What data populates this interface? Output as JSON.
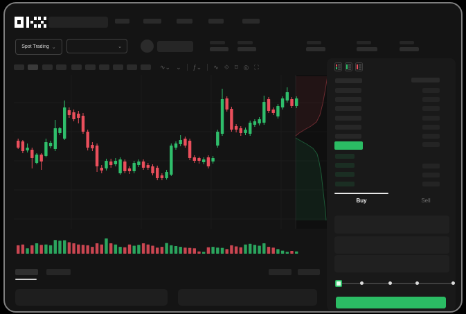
{
  "brand": {
    "name": "OKX"
  },
  "subnav": {
    "market_type": "Spot Trading",
    "chevron": "⌄"
  },
  "chart_toolbar": {
    "icons": [
      {
        "name": "candle-style-icon",
        "glyph": "∿⌄"
      },
      {
        "name": "interval-chevron-icon",
        "glyph": "⌄"
      },
      {
        "name": "indicators-icon",
        "glyph": "ƒ⌄"
      },
      {
        "name": "line-tools-icon",
        "glyph": "∿"
      },
      {
        "name": "objects-icon",
        "glyph": "⟐"
      },
      {
        "name": "snapshot-icon",
        "glyph": "⌑"
      },
      {
        "name": "settings-icon",
        "glyph": "◎"
      },
      {
        "name": "fullscreen-icon",
        "glyph": "⛶"
      }
    ]
  },
  "order_book": {
    "mode_icons": [
      "orderbook-combined-icon",
      "orderbook-bids-icon",
      "orderbook-asks-icon"
    ],
    "ask_row_count": 6,
    "bid_row_count": 4,
    "last_price_highlight_color": "#2BBC64"
  },
  "trade_panel": {
    "buy_tab": "Buy",
    "sell_tab": "Sell",
    "field_count": 3,
    "slider": {
      "tick_count": 5,
      "value_percent": 0
    },
    "buy_button_color": "#2BBC64"
  },
  "colors": {
    "up": "#2FBE6B",
    "down": "#EA4F5C",
    "background": "#141414",
    "panel": "#191919"
  },
  "chart_data": {
    "type": "candlestick",
    "axes_visible": false,
    "units": "relative price units (no axis labels are visible in the screenshot); volume 0-100",
    "ohlcv": [
      [
        127,
        130,
        115,
        117,
        55
      ],
      [
        126,
        128,
        109,
        112,
        60
      ],
      [
        113,
        123,
        110,
        117,
        35
      ],
      [
        114,
        117,
        87,
        102,
        55
      ],
      [
        95,
        109,
        93,
        107,
        68
      ],
      [
        107,
        109,
        85,
        97,
        58
      ],
      [
        105,
        130,
        103,
        125,
        60
      ],
      [
        119,
        127,
        116,
        124,
        55
      ],
      [
        115,
        157,
        112,
        145,
        90
      ],
      [
        138,
        147,
        135,
        145,
        85
      ],
      [
        130,
        185,
        128,
        175,
        88
      ],
      [
        171,
        175,
        160,
        164,
        75
      ],
      [
        168,
        172,
        155,
        158,
        68
      ],
      [
        166,
        170,
        152,
        160,
        60
      ],
      [
        163,
        167,
        137,
        140,
        58
      ],
      [
        140,
        143,
        113,
        117,
        55
      ],
      [
        121,
        125,
        112,
        116,
        45
      ],
      [
        120,
        123,
        82,
        90,
        68
      ],
      [
        88,
        92,
        80,
        84,
        60
      ],
      [
        87,
        101,
        84,
        98,
        100
      ],
      [
        97,
        101,
        88,
        92,
        68
      ],
      [
        93,
        102,
        90,
        98,
        60
      ],
      [
        80,
        103,
        78,
        100,
        45
      ],
      [
        97,
        100,
        80,
        83,
        42
      ],
      [
        87,
        90,
        79,
        83,
        60
      ],
      [
        83,
        98,
        80,
        95,
        52
      ],
      [
        92,
        100,
        89,
        97,
        58
      ],
      [
        97,
        100,
        85,
        88,
        68
      ],
      [
        92,
        95,
        85,
        88,
        60
      ],
      [
        90,
        93,
        77,
        80,
        52
      ],
      [
        88,
        91,
        70,
        73,
        40
      ],
      [
        77,
        80,
        70,
        73,
        45
      ],
      [
        73,
        85,
        71,
        82,
        70
      ],
      [
        78,
        123,
        76,
        120,
        55
      ],
      [
        117,
        126,
        114,
        123,
        50
      ],
      [
        122,
        135,
        119,
        128,
        45
      ],
      [
        130,
        133,
        117,
        120,
        40
      ],
      [
        127,
        130,
        99,
        102,
        38
      ],
      [
        103,
        106,
        95,
        98,
        35
      ],
      [
        102,
        104,
        94,
        98,
        15
      ],
      [
        96,
        103,
        93,
        100,
        12
      ],
      [
        103,
        106,
        87,
        90,
        42
      ],
      [
        97,
        105,
        94,
        102,
        45
      ],
      [
        120,
        143,
        117,
        140,
        40
      ],
      [
        137,
        202,
        134,
        187,
        38
      ],
      [
        188,
        191,
        169,
        172,
        30
      ],
      [
        173,
        176,
        140,
        143,
        55
      ],
      [
        148,
        151,
        139,
        143,
        48
      ],
      [
        145,
        148,
        134,
        138,
        42
      ],
      [
        138,
        146,
        135,
        143,
        60
      ],
      [
        137,
        156,
        134,
        153,
        65
      ],
      [
        150,
        158,
        147,
        155,
        58
      ],
      [
        152,
        161,
        149,
        158,
        52
      ],
      [
        153,
        192,
        150,
        183,
        68
      ],
      [
        187,
        190,
        167,
        170,
        45
      ],
      [
        172,
        175,
        164,
        167,
        40
      ],
      [
        162,
        180,
        159,
        177,
        30
      ],
      [
        175,
        191,
        172,
        188,
        20
      ],
      [
        185,
        204,
        182,
        197,
        12
      ],
      [
        187,
        190,
        174,
        177,
        18
      ],
      [
        177,
        191,
        174,
        188,
        15
      ]
    ],
    "gridlines": {
      "horizontal_y": [
        40,
        82,
        124,
        166,
        208
      ],
      "vertical_x": [
        83,
        184,
        285,
        386
      ]
    },
    "depth_overlay": {
      "ask_curve": [
        [
          407,
          88
        ],
        [
          412,
          84
        ],
        [
          420,
          79
        ],
        [
          429,
          74
        ],
        [
          437,
          68
        ],
        [
          442,
          58
        ],
        [
          446,
          42
        ],
        [
          449,
          26
        ],
        [
          452,
          8
        ],
        [
          453,
          2
        ]
      ],
      "bid_curve": [
        [
          407,
          91
        ],
        [
          414,
          95
        ],
        [
          423,
          100
        ],
        [
          432,
          106
        ],
        [
          438,
          114
        ],
        [
          441,
          126
        ],
        [
          444,
          143
        ],
        [
          446,
          161
        ],
        [
          448,
          179
        ],
        [
          450,
          196
        ],
        [
          451,
          210
        ]
      ]
    }
  }
}
